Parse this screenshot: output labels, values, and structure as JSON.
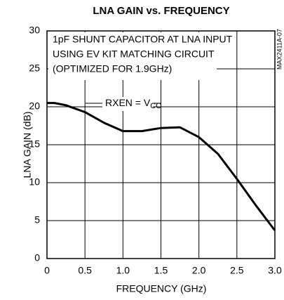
{
  "chart_data": {
    "type": "line",
    "title": "LNA GAIN vs. FREQUENCY",
    "x_label": "FREQUENCY (GHz)",
    "y_label": "LNA GAIN (dB)",
    "annotations": [
      "1pF SHUNT CAPACITOR AT LNA INPUT",
      "USING EV KIT MATCHING CIRCUIT",
      "(OPTIMIZED FOR 1.9GHz)"
    ],
    "curve_label": {
      "text": "RXEN = V",
      "subscript": "CC"
    },
    "figure_id": "MAX2411A-07",
    "x": [
      0,
      0.1,
      0.25,
      0.5,
      0.75,
      1.0,
      1.25,
      1.5,
      1.75,
      2.0,
      2.25,
      2.5,
      2.75,
      3.0
    ],
    "values": [
      20.5,
      20.5,
      20.2,
      19.3,
      17.9,
      16.8,
      16.8,
      17.2,
      17.3,
      16.0,
      13.8,
      10.5,
      7.0,
      3.7
    ],
    "color": "#000000",
    "xlim": [
      0,
      3.0
    ],
    "xticks": [
      0,
      0.5,
      {
        "value": 1.0,
        "label": "1.0"
      },
      1.5,
      {
        "value": 2.0,
        "label": "2.0"
      },
      2.5,
      {
        "value": 3.0,
        "label": "3.0"
      }
    ],
    "ylim": [
      0,
      30
    ],
    "yticks": [
      0,
      5,
      10,
      15,
      20,
      25,
      30
    ],
    "grid": true
  }
}
